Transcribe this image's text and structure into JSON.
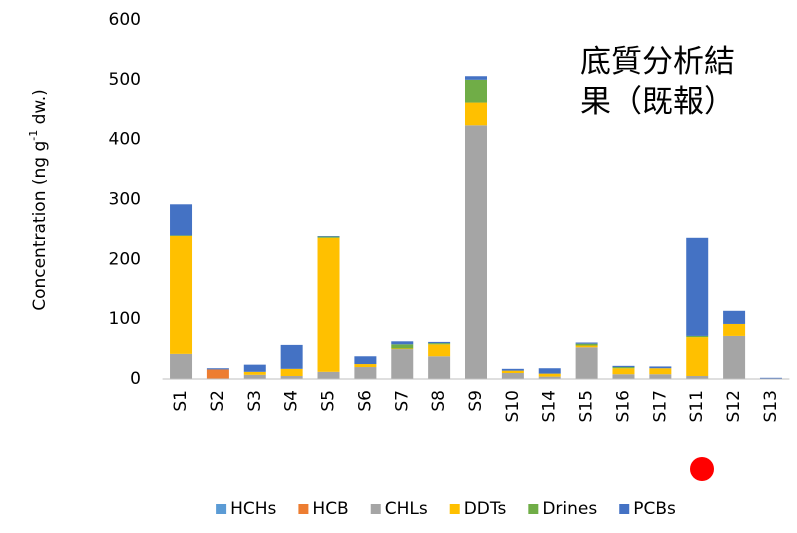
{
  "chart_data": {
    "type": "stacked_bar",
    "annotation_lines": [
      "底質分析結",
      "果（既報）"
    ],
    "ylabel": [
      "Concentration (ng g",
      "-1",
      " dw.)"
    ],
    "categories": [
      "S1",
      "S2",
      "S3",
      "S4",
      "S5",
      "S6",
      "S7",
      "S8",
      "S9",
      "S10",
      "S14",
      "S15",
      "S16",
      "S17",
      "S11",
      "S12",
      "S13"
    ],
    "series": [
      {
        "name": "HCHs",
        "color": "#5b9bd5",
        "values": [
          0,
          0,
          0,
          0,
          0,
          0,
          0,
          0,
          0,
          0,
          0,
          0,
          0,
          0,
          0,
          0,
          0
        ]
      },
      {
        "name": "HCB",
        "color": "#ed7d31",
        "values": [
          0,
          16,
          0,
          0,
          0,
          0,
          0,
          0,
          0,
          0,
          0,
          0,
          0,
          0,
          0,
          0,
          0
        ]
      },
      {
        "name": "CHLs",
        "color": "#a5a5a5",
        "values": [
          42,
          0,
          7,
          5,
          12,
          20,
          50,
          38,
          424,
          10,
          4,
          53,
          8,
          8,
          5,
          72,
          0
        ]
      },
      {
        "name": "DDTs",
        "color": "#ffc000",
        "values": [
          197,
          0,
          5,
          12,
          224,
          5,
          1,
          20,
          38,
          4,
          5,
          3,
          10,
          10,
          65,
          20,
          0
        ]
      },
      {
        "name": "Drines",
        "color": "#70ad47",
        "values": [
          1,
          0,
          0,
          0,
          2,
          0,
          7,
          2,
          38,
          0,
          0,
          3,
          2,
          0,
          2,
          0,
          0
        ]
      },
      {
        "name": "PCBs",
        "color": "#4472c4",
        "values": [
          52,
          2,
          12,
          40,
          1,
          13,
          5,
          2,
          6,
          3,
          9,
          2,
          2,
          3,
          164,
          22,
          2
        ]
      }
    ],
    "ylim": [
      0,
      600
    ],
    "yticks": [
      0,
      100,
      200,
      300,
      400,
      500,
      600
    ],
    "grid": false,
    "legend": "bottom"
  }
}
